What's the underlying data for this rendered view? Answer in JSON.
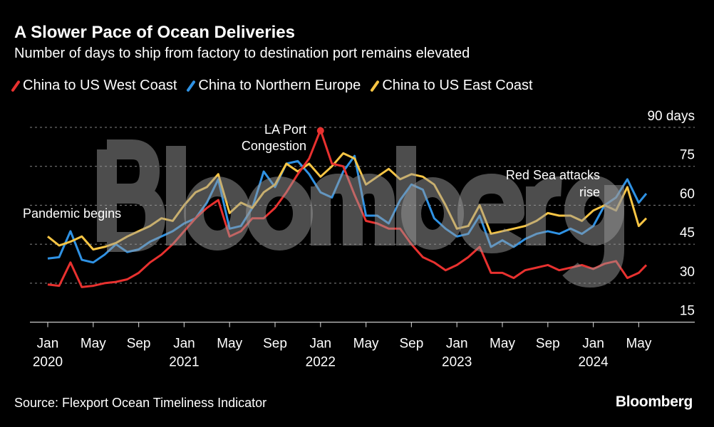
{
  "header": {
    "title": "A Slower Pace of Ocean Deliveries",
    "subtitle": "Number of days to ship from factory to destination port remains elevated"
  },
  "footer": {
    "source": "Source: Flexport Ocean Timeliness Indicator",
    "logo": "Bloomberg"
  },
  "watermark": "Bloomberg",
  "chart_data": {
    "type": "line",
    "title": "A Slower Pace of Ocean Deliveries",
    "subtitle": "Number of days to ship from factory to destination port remains elevated",
    "ylabel_unit": "days",
    "ylim": [
      15,
      90
    ],
    "yticks": [
      {
        "value": 90,
        "label": "90 days"
      },
      {
        "value": 75,
        "label": "75"
      },
      {
        "value": 60,
        "label": "60"
      },
      {
        "value": 45,
        "label": "45"
      },
      {
        "value": 30,
        "label": "30"
      },
      {
        "value": 15,
        "label": "15"
      }
    ],
    "xticks": [
      {
        "date": "2020-01",
        "label": "Jan",
        "year": "2020"
      },
      {
        "date": "2020-05",
        "label": "May",
        "year": ""
      },
      {
        "date": "2020-09",
        "label": "Sep",
        "year": ""
      },
      {
        "date": "2021-01",
        "label": "Jan",
        "year": "2021"
      },
      {
        "date": "2021-05",
        "label": "May",
        "year": ""
      },
      {
        "date": "2021-09",
        "label": "Sep",
        "year": ""
      },
      {
        "date": "2022-01",
        "label": "Jan",
        "year": "2022"
      },
      {
        "date": "2022-05",
        "label": "May",
        "year": ""
      },
      {
        "date": "2022-09",
        "label": "Sep",
        "year": ""
      },
      {
        "date": "2023-01",
        "label": "Jan",
        "year": "2023"
      },
      {
        "date": "2023-05",
        "label": "May",
        "year": ""
      },
      {
        "date": "2023-09",
        "label": "Sep",
        "year": ""
      },
      {
        "date": "2024-01",
        "label": "Jan",
        "year": "2024"
      },
      {
        "date": "2024-05",
        "label": "May",
        "year": ""
      }
    ],
    "grid": true,
    "legend_position": "top-left",
    "x": [
      "2020-01",
      "2020-02",
      "2020-03",
      "2020-04",
      "2020-05",
      "2020-06",
      "2020-07",
      "2020-08",
      "2020-09",
      "2020-10",
      "2020-11",
      "2020-12",
      "2021-01",
      "2021-02",
      "2021-03",
      "2021-04",
      "2021-05",
      "2021-06",
      "2021-07",
      "2021-08",
      "2021-09",
      "2021-10",
      "2021-11",
      "2021-12",
      "2022-01",
      "2022-02",
      "2022-03",
      "2022-04",
      "2022-05",
      "2022-06",
      "2022-07",
      "2022-08",
      "2022-09",
      "2022-10",
      "2022-11",
      "2022-12",
      "2023-01",
      "2023-02",
      "2023-03",
      "2023-04",
      "2023-05",
      "2023-06",
      "2023-07",
      "2023-08",
      "2023-09",
      "2023-10",
      "2023-11",
      "2023-12",
      "2024-01",
      "2024-02",
      "2024-03",
      "2024-04",
      "2024-05",
      "2024-05-21"
    ],
    "series": [
      {
        "name": "China to US West Coast",
        "color": "#e8312f",
        "values": [
          29.5,
          29,
          38,
          28.5,
          29,
          30,
          30.5,
          31.5,
          34,
          38,
          41,
          45,
          50,
          55,
          59,
          62,
          48,
          50,
          55,
          55,
          59,
          65,
          72,
          78,
          89,
          76,
          75,
          64,
          54,
          53,
          51,
          51,
          45,
          40,
          38,
          35,
          37,
          40,
          44,
          34,
          34,
          32,
          35,
          36,
          37,
          35,
          36,
          37,
          35.5,
          37.5,
          38.5,
          32,
          34,
          37
        ]
      },
      {
        "name": "China to Northern Europe",
        "color": "#2f92e4",
        "values": [
          39.5,
          40,
          50,
          39,
          38,
          41,
          45,
          42,
          43,
          46,
          48,
          50,
          53,
          55,
          61,
          70,
          51,
          52,
          59,
          73,
          67,
          76,
          77,
          72,
          65,
          63,
          73,
          79,
          56,
          56,
          53,
          62,
          68,
          66,
          55,
          51,
          48,
          49,
          56,
          44,
          46.5,
          44,
          47,
          49,
          50,
          49,
          51,
          49,
          52,
          60,
          63,
          70,
          61,
          64.5
        ]
      },
      {
        "name": "China to US East Coast",
        "color": "#f7c544",
        "values": [
          48,
          44.5,
          46,
          48,
          43,
          44,
          45.5,
          48,
          50,
          52,
          55,
          54,
          60,
          65,
          67,
          72,
          57,
          61,
          59,
          65,
          68,
          76,
          73,
          76,
          71,
          75,
          80,
          78,
          68,
          71,
          74,
          70,
          72,
          71,
          68,
          60,
          51,
          52,
          60,
          49,
          50,
          51,
          52,
          54,
          57,
          56,
          56,
          54,
          58,
          60,
          58,
          67,
          52,
          55
        ]
      }
    ],
    "annotations": [
      {
        "lines": [
          "LA Port",
          "Congestion"
        ],
        "date": "2022-01",
        "value": 89
      },
      {
        "lines": [
          "Pandemic begins"
        ],
        "date": "2020-03",
        "value": 38
      },
      {
        "lines": [
          "Red Sea attacks",
          "rise"
        ],
        "date": "2023-12",
        "value": 60
      }
    ]
  }
}
